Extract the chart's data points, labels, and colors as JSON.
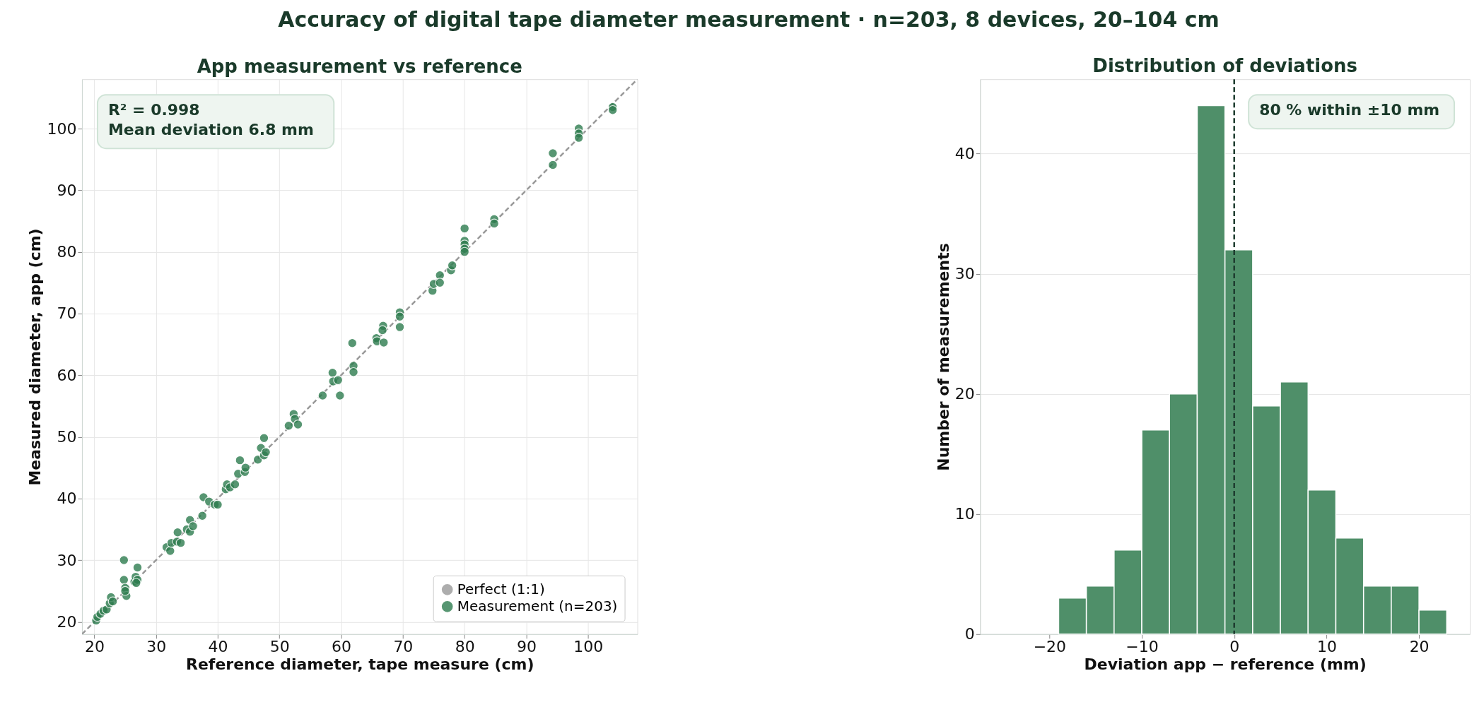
{
  "chart_data": [
    {
      "type": "scatter",
      "title": "Accuracy of digital tape diameter measurement  ·  n=203, 8 devices, 20–104 cm",
      "subtitle": "App measurement vs reference",
      "xlabel": "Reference diameter, tape measure (cm)",
      "ylabel": "Measured diameter, app (cm)",
      "xlim": [
        18,
        108
      ],
      "ylim": [
        18,
        108
      ],
      "xticks": [
        20,
        30,
        40,
        50,
        60,
        70,
        80,
        90,
        100
      ],
      "yticks": [
        20,
        30,
        40,
        50,
        60,
        70,
        80,
        90,
        100
      ],
      "grid": true,
      "legend": "bottom right",
      "annotations": [
        "R² = 0.998",
        "Mean deviation 6.8 mm"
      ],
      "series": [
        {
          "name": "Perfect (1:1)",
          "type": "line",
          "line_style": "dashed",
          "color": "#999999",
          "x": [
            18,
            108
          ],
          "values": [
            18,
            108
          ]
        },
        {
          "name": "Measurement (n=203)",
          "color": "#2e7d4f",
          "marker": "circle",
          "x": [
            20.3,
            20.5,
            21,
            21.5,
            22,
            22.5,
            22.7,
            23,
            24.8,
            24.8,
            25,
            25.2,
            25,
            26.5,
            26.7,
            27,
            27,
            26.8,
            31.7,
            32.3,
            32.5,
            33.4,
            33.5,
            34,
            35,
            35.5,
            35.5,
            36,
            37.5,
            37.7,
            38.6,
            39.5,
            40,
            41.3,
            41.5,
            42,
            42.8,
            43.3,
            43.6,
            44.4,
            44.5,
            46.5,
            47,
            47.5,
            47.5,
            47.8,
            51.5,
            52.3,
            52.5,
            53,
            57,
            58.6,
            58.7,
            59.5,
            59.8,
            61.8,
            62,
            62,
            65.7,
            65.8,
            66.8,
            66.7,
            66.9,
            69.5,
            69.5,
            69.5,
            74.8,
            75,
            76,
            76,
            77.8,
            78,
            80,
            80,
            80,
            80,
            80,
            84.8,
            84.8,
            94.3,
            94.3,
            98.5,
            98.5,
            98.5,
            104,
            104
          ],
          "values": [
            20.2,
            20.8,
            21.3,
            21.8,
            22,
            23,
            24,
            23.3,
            30,
            26.8,
            25.5,
            24.2,
            25,
            26.5,
            27.3,
            28.8,
            26.8,
            26.3,
            32.1,
            31.5,
            32.8,
            33,
            34.5,
            32.8,
            35,
            36.5,
            34.6,
            35.5,
            37.2,
            40.2,
            39.5,
            39,
            39,
            41.5,
            42.3,
            41.8,
            42.3,
            44,
            46.2,
            44.3,
            45,
            46.3,
            48.2,
            49.8,
            47,
            47.5,
            51.8,
            53.7,
            52.9,
            52,
            56.7,
            60.4,
            59,
            59.2,
            56.7,
            65.2,
            61.5,
            60.5,
            66,
            65.5,
            68,
            67.3,
            65.3,
            70.2,
            69.5,
            67.8,
            73.7,
            74.8,
            76.2,
            75,
            77,
            77.8,
            83.8,
            81.8,
            81.2,
            80.5,
            80,
            85.3,
            84.6,
            96,
            94.1,
            100,
            99.2,
            98.5,
            103.5,
            103
          ]
        }
      ]
    },
    {
      "type": "histogram",
      "title": "Distribution of deviations",
      "xlabel": "Deviation app − reference (mm)",
      "ylabel": "Number of measurements",
      "bins": [
        -19,
        -16,
        -13,
        -10,
        -7,
        -4,
        -1,
        2,
        5,
        8,
        11,
        14,
        17,
        20,
        23
      ],
      "values": [
        3,
        4,
        7,
        17,
        20,
        44,
        32,
        19,
        21,
        12,
        8,
        4,
        4,
        2
      ],
      "color": "#4f8f69",
      "xlim": [
        -27.5,
        25.5
      ],
      "ylim": [
        0,
        46.2
      ],
      "xticks": [
        {
          "value": -20,
          "label": "−20"
        },
        {
          "value": -10,
          "label": "−10"
        },
        0,
        10,
        20
      ],
      "yticks": [
        0,
        10,
        20,
        30,
        40
      ],
      "grid": "y",
      "ref_lines": [
        {
          "axis": "x",
          "value": 0,
          "color": "#1f3d30",
          "line_style": "dashed"
        }
      ],
      "annotations": [
        "80 % within ±10 mm"
      ]
    }
  ]
}
